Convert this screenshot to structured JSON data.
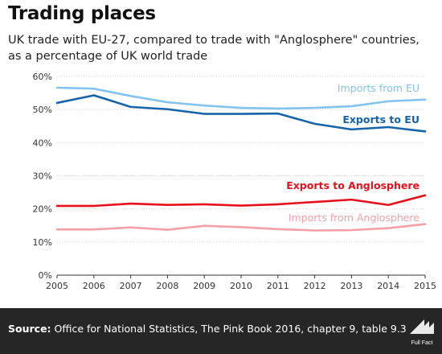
{
  "header": {
    "title": "Trading places",
    "subtitle": "UK trade with EU-27, compared to trade with \"Anglosphere\" countries, as a percentage of UK world trade"
  },
  "footer": {
    "source_label": "Source:",
    "source_text": "Office for National Statistics, The Pink Book 2016, chapter 9, table 9.3",
    "logo_text": "Full Fact"
  },
  "chart_data": {
    "type": "line",
    "title": "Trading places",
    "xlabel": "",
    "ylabel": "",
    "x": [
      2005,
      2006,
      2007,
      2008,
      2009,
      2010,
      2011,
      2012,
      2013,
      2014,
      2015
    ],
    "ylim": [
      0,
      60
    ],
    "yticks": [
      0,
      10,
      20,
      30,
      40,
      50,
      60
    ],
    "ytick_labels": [
      "0%",
      "10%",
      "20%",
      "30%",
      "40%",
      "50%",
      "60%"
    ],
    "grid": "horizontal",
    "legend": "inline labels",
    "series": [
      {
        "name": "Imports from EU",
        "color": "#82c3f0",
        "values": [
          56.6,
          56.3,
          54.1,
          52.2,
          51.2,
          50.5,
          50.3,
          50.5,
          51.0,
          52.5,
          53.0
        ]
      },
      {
        "name": "Exports to EU",
        "color": "#1563a8",
        "values": [
          52.0,
          54.3,
          50.8,
          50.1,
          48.7,
          48.7,
          48.8,
          45.7,
          44.0,
          44.7,
          43.4
        ]
      },
      {
        "name": "Exports to Anglosphere",
        "color": "#e8101b",
        "values": [
          20.9,
          20.9,
          21.6,
          21.2,
          21.4,
          21.0,
          21.4,
          22.1,
          22.8,
          21.2,
          24.1
        ]
      },
      {
        "name": "Imports from Anglosphere",
        "color": "#f5a0a6",
        "values": [
          13.8,
          13.8,
          14.4,
          13.7,
          14.9,
          14.5,
          13.9,
          13.5,
          13.6,
          14.2,
          15.4
        ]
      }
    ]
  }
}
